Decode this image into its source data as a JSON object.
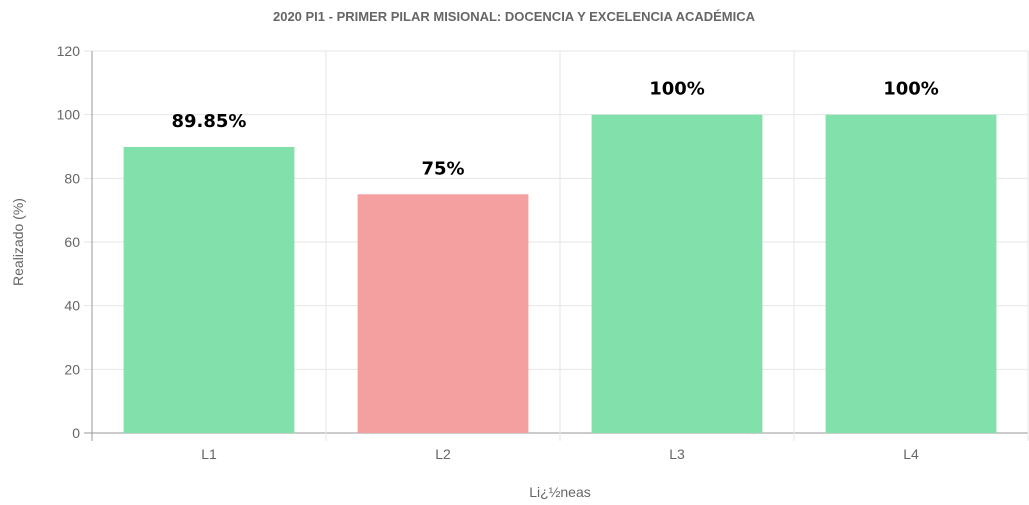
{
  "chart_data": {
    "type": "bar",
    "title": "2020 PI1 - PRIMER PILAR MISIONAL: DOCENCIA Y EXCELENCIA ACADÉMICA",
    "xlabel": "Li¿½neas",
    "ylabel": "Realizado (%)",
    "categories": [
      "L1",
      "L2",
      "L3",
      "L4"
    ],
    "values": [
      89.85,
      75,
      100,
      100
    ],
    "data_labels": [
      "89.85%",
      "75%",
      "100%",
      "100%"
    ],
    "bar_colors": [
      "#82e0aa",
      "#f5a0a0",
      "#82e0aa",
      "#82e0aa"
    ],
    "ylim": [
      0,
      120
    ],
    "yticks": [
      0,
      20,
      40,
      60,
      80,
      100,
      120
    ],
    "grid": true,
    "legend": "none"
  },
  "colors": {
    "success": "#82e0aa",
    "warning": "#f5a0a0",
    "grid": "#e6e6e6",
    "axis": "#999999",
    "text": "#666666"
  }
}
